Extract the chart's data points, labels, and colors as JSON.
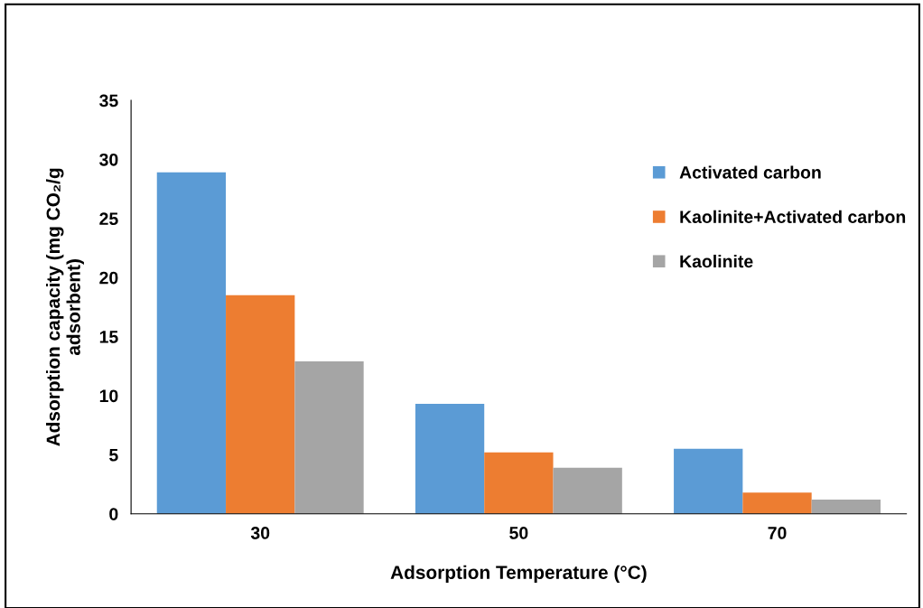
{
  "chart_data": {
    "type": "bar",
    "xlabel": "Adsorption Temperature (°C)",
    "ylabel": "Adsorption capacity (mg CO₂/g\nadsorbent)",
    "categories": [
      "30",
      "50",
      "70"
    ],
    "series": [
      {
        "name": "Activated carbon",
        "color": "#5b9bd5",
        "values": [
          28.9,
          9.3,
          5.5
        ]
      },
      {
        "name": "Kaolinite+Activated carbon",
        "color": "#ed7d31",
        "values": [
          18.5,
          5.2,
          1.8
        ]
      },
      {
        "name": "Kaolinite",
        "color": "#a5a5a5",
        "values": [
          12.9,
          3.9,
          1.2
        ]
      }
    ],
    "ylim": [
      0,
      35
    ],
    "yticks": [
      0,
      5,
      10,
      15,
      20,
      25,
      30,
      35
    ],
    "grid": false,
    "legend": "top right"
  }
}
